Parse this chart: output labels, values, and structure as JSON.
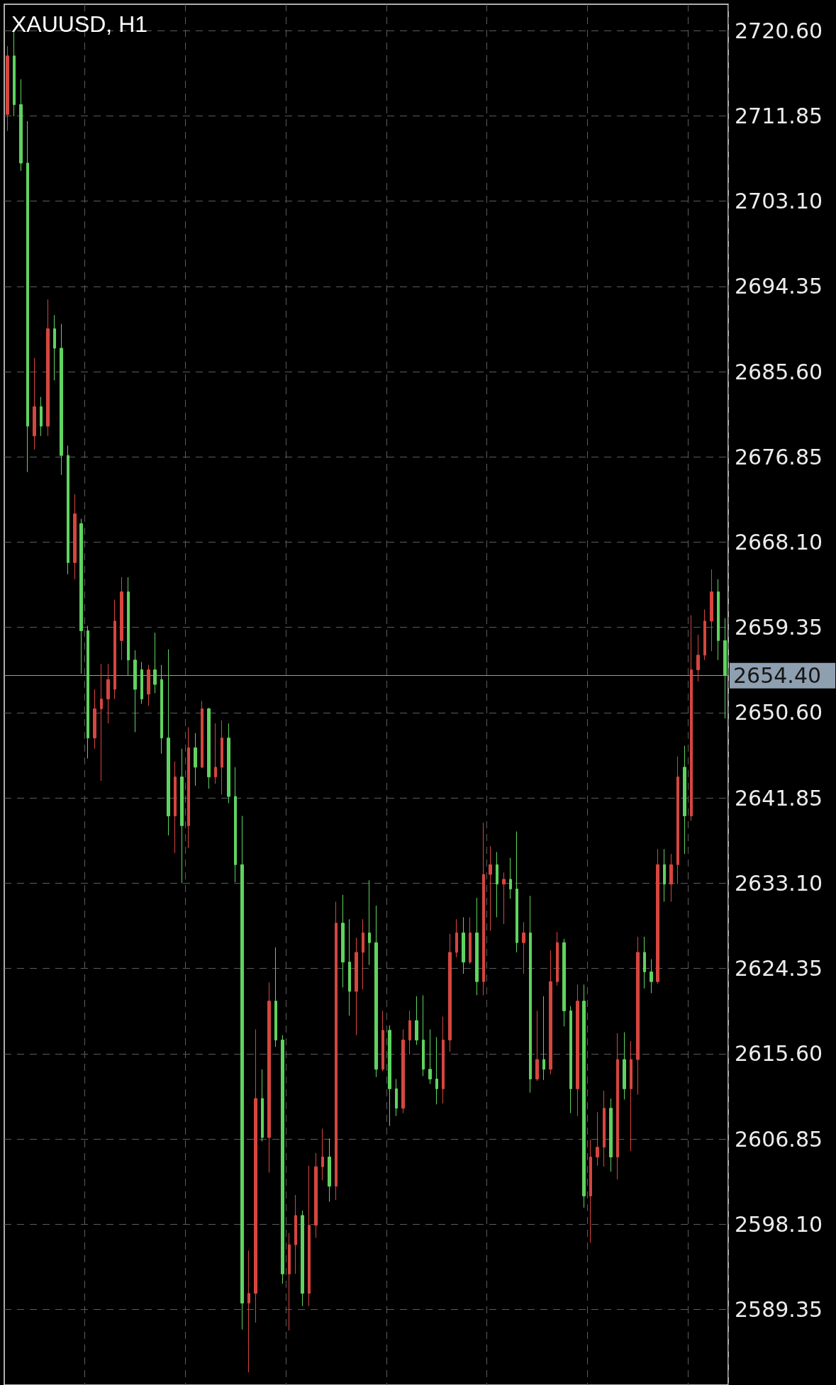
{
  "chart_data": {
    "type": "candlestick",
    "title": "XAUUSD, H1",
    "categories": [
      null,
      null,
      null,
      null,
      null,
      null,
      null,
      null,
      null,
      null,
      null,
      null,
      null,
      null,
      null,
      null,
      null,
      null,
      null,
      null,
      null,
      null,
      null,
      null,
      null,
      null,
      null,
      null,
      null,
      null,
      null,
      null,
      null,
      null,
      null,
      null,
      null,
      null,
      null,
      null,
      null,
      null,
      null,
      null,
      null,
      null,
      null,
      null,
      null,
      null,
      null,
      null,
      null,
      null,
      null,
      null,
      null,
      null,
      null,
      null,
      null,
      null,
      null,
      null,
      null,
      null,
      null,
      null,
      null,
      null,
      null,
      null,
      null,
      null,
      null,
      null,
      null,
      null,
      null,
      null,
      null,
      null,
      null,
      null,
      null,
      null,
      null,
      null,
      null,
      null,
      null,
      null,
      null,
      null,
      null,
      null,
      null,
      null,
      null,
      null,
      null,
      null,
      null,
      null,
      null,
      null,
      null,
      null
    ],
    "ohlc": [
      [
        2712,
        2719,
        2710.3,
        2718
      ],
      [
        2718,
        2720.6,
        2711.8,
        2713
      ],
      [
        2713,
        2715.6,
        2706.2,
        2707
      ],
      [
        2707,
        2711.3,
        2675.3,
        2680
      ],
      [
        2679,
        2687,
        2677.6,
        2682
      ],
      [
        2682,
        2683,
        2679,
        2680
      ],
      [
        2680,
        2693,
        2679,
        2690
      ],
      [
        2690,
        2691.4,
        2684.7,
        2688
      ],
      [
        2688,
        2690.5,
        2675,
        2677
      ],
      [
        2677,
        2678,
        2664.8,
        2666
      ],
      [
        2666,
        2673,
        2664.3,
        2671
      ],
      [
        2670,
        2670.5,
        2654.6,
        2659
      ],
      [
        2659,
        2659.5,
        2645.9,
        2648
      ],
      [
        2648,
        2653,
        2646.9,
        2651
      ],
      [
        2651,
        2655.6,
        2643.6,
        2652
      ],
      [
        2652,
        2655.6,
        2649.5,
        2654
      ],
      [
        2653,
        2662.2,
        2652,
        2660
      ],
      [
        2658,
        2664.5,
        2656,
        2663
      ],
      [
        2663,
        2664.5,
        2654.4,
        2656
      ],
      [
        2656,
        2657,
        2648.6,
        2653
      ],
      [
        2655,
        2655.8,
        2651.5,
        2652
      ],
      [
        2652.5,
        2655.5,
        2651.3,
        2655
      ],
      [
        2655,
        2658.8,
        2652.6,
        2653.5
      ],
      [
        2654,
        2655.5,
        2646.4,
        2648
      ],
      [
        2648,
        2657.1,
        2638,
        2640
      ],
      [
        2640,
        2645.6,
        2636.2,
        2644
      ],
      [
        2644,
        2646.9,
        2633.1,
        2639
      ],
      [
        2639,
        2649.1,
        2636.7,
        2647
      ],
      [
        2647,
        2648.5,
        2643.1,
        2645
      ],
      [
        2645,
        2651.8,
        2644.9,
        2651
      ],
      [
        2651,
        2651.1,
        2642.8,
        2644
      ],
      [
        2644,
        2649.5,
        2643.3,
        2645
      ],
      [
        2645,
        2649.8,
        2642.2,
        2648
      ],
      [
        2648,
        2649.5,
        2641.3,
        2642
      ],
      [
        2642,
        2645,
        2633.2,
        2635
      ],
      [
        2635,
        2640,
        2587.3,
        2590
      ],
      [
        2590,
        2595.4,
        2582.9,
        2591
      ],
      [
        2591,
        2618.1,
        2588,
        2611
      ],
      [
        2611,
        2614,
        2606.6,
        2607
      ],
      [
        2607,
        2622.9,
        2603.4,
        2621
      ],
      [
        2621,
        2626.5,
        2616.3,
        2617
      ],
      [
        2617,
        2617.5,
        2592,
        2593
      ],
      [
        2593,
        2597.2,
        2587.2,
        2596
      ],
      [
        2596,
        2601.1,
        2593,
        2599
      ],
      [
        2599,
        2599.5,
        2589.7,
        2591
      ],
      [
        2591,
        2604.1,
        2589.7,
        2598
      ],
      [
        2598,
        2605.4,
        2596.7,
        2604
      ],
      [
        2604,
        2607.9,
        2602.6,
        2605
      ],
      [
        2605,
        2606.9,
        2600.4,
        2602
      ],
      [
        2602,
        2631.2,
        2600.6,
        2629
      ],
      [
        2629,
        2631.9,
        2622.4,
        2625
      ],
      [
        2625,
        2629.4,
        2619.5,
        2622
      ],
      [
        2622,
        2627.5,
        2617.5,
        2626
      ],
      [
        2626,
        2629.4,
        2622.2,
        2628
      ],
      [
        2628,
        2633.4,
        2624.7,
        2627
      ],
      [
        2627,
        2630.8,
        2613.2,
        2614
      ],
      [
        2614,
        2620,
        2613.8,
        2618
      ],
      [
        2618,
        2618.5,
        2608.2,
        2612
      ],
      [
        2612,
        2613,
        2609.2,
        2610
      ],
      [
        2610,
        2618.1,
        2609.5,
        2617
      ],
      [
        2617,
        2620,
        2615.5,
        2619
      ],
      [
        2619,
        2621.5,
        2616.5,
        2617
      ],
      [
        2617,
        2621.6,
        2613.3,
        2614
      ],
      [
        2614,
        2618.1,
        2612.5,
        2613
      ],
      [
        2613,
        2617.3,
        2610.4,
        2612
      ],
      [
        2612,
        2619.4,
        2610.5,
        2617
      ],
      [
        2617,
        2627.9,
        2615.8,
        2626
      ],
      [
        2626,
        2629.4,
        2625.5,
        2628
      ],
      [
        2628,
        2629.6,
        2623.8,
        2625
      ],
      [
        2625,
        2629.6,
        2624.8,
        2628
      ],
      [
        2628,
        2631.6,
        2621.6,
        2623
      ],
      [
        2623,
        2639.3,
        2621.6,
        2634
      ],
      [
        2634,
        2636.9,
        2628.2,
        2635
      ],
      [
        2635,
        2636.3,
        2629.6,
        2633
      ],
      [
        2633,
        2634.2,
        2628.9,
        2633.5
      ],
      [
        2633.5,
        2635.7,
        2631.5,
        2632.5
      ],
      [
        2632.5,
        2638.4,
        2626,
        2627
      ],
      [
        2627,
        2629.1,
        2623.8,
        2628
      ],
      [
        2628,
        2631.8,
        2611.6,
        2613
      ],
      [
        2613,
        2620,
        2612.8,
        2615
      ],
      [
        2615,
        2621.5,
        2612.9,
        2614
      ],
      [
        2614,
        2626.2,
        2613.5,
        2623
      ],
      [
        2623,
        2628.1,
        2622.6,
        2627
      ],
      [
        2627,
        2627.4,
        2618.4,
        2620
      ],
      [
        2620,
        2620.5,
        2609.5,
        2612
      ],
      [
        2612,
        2622.7,
        2609.2,
        2621
      ],
      [
        2621,
        2622.7,
        2599.8,
        2601
      ],
      [
        2601,
        2606.8,
        2596.2,
        2605
      ],
      [
        2605,
        2609.6,
        2604.1,
        2606
      ],
      [
        2606,
        2611.8,
        2604,
        2610
      ],
      [
        2610,
        2611,
        2603.5,
        2605
      ],
      [
        2605,
        2617.7,
        2602.7,
        2615
      ],
      [
        2615,
        2617.8,
        2610.9,
        2612
      ],
      [
        2612,
        2616.9,
        2605.6,
        2615
      ],
      [
        2615,
        2627.6,
        2611.4,
        2626
      ],
      [
        2626,
        2627.6,
        2622.3,
        2624
      ],
      [
        2624,
        2625.3,
        2621.8,
        2623
      ],
      [
        2623,
        2636.6,
        2622.8,
        2635
      ],
      [
        2635,
        2636.6,
        2631.2,
        2633
      ],
      [
        2633,
        2636.1,
        2631.2,
        2635
      ],
      [
        2635,
        2646.1,
        2633,
        2644
      ],
      [
        2645,
        2647.2,
        2636.1,
        2640
      ],
      [
        2640,
        2660.6,
        2639.5,
        2655
      ],
      [
        2655,
        2658.6,
        2653.8,
        2656.5
      ],
      [
        2656.5,
        2661.2,
        2656,
        2660
      ],
      [
        2660,
        2665.3,
        2656.9,
        2663
      ],
      [
        2663,
        2664.3,
        2656,
        2658
      ],
      [
        2658,
        2660.3,
        2650,
        2654.4
      ]
    ],
    "colors": [
      "#d5463f",
      "#5fd35f",
      "#5fd35f",
      "#5fd35f",
      "#d5463f",
      "#5fd35f",
      "#d5463f",
      "#5fd35f",
      "#5fd35f",
      "#5fd35f",
      "#d5463f",
      "#5fd35f",
      "#5fd35f",
      "#d5463f",
      "#d5463f",
      "#d5463f",
      "#d5463f",
      "#d5463f",
      "#5fd35f",
      "#5fd35f",
      "#5fd35f",
      "#d5463f",
      "#5fd35f",
      "#5fd35f",
      "#5fd35f",
      "#d5463f",
      "#5fd35f",
      "#d5463f",
      "#5fd35f",
      "#d5463f",
      "#5fd35f",
      "#d5463f",
      "#d5463f",
      "#5fd35f",
      "#5fd35f",
      "#5fd35f",
      "#d5463f",
      "#d5463f",
      "#5fd35f",
      "#d5463f",
      "#5fd35f",
      "#5fd35f",
      "#d5463f",
      "#d5463f",
      "#5fd35f",
      "#d5463f",
      "#d5463f",
      "#d5463f",
      "#5fd35f",
      "#d5463f",
      "#5fd35f",
      "#5fd35f",
      "#d5463f",
      "#d5463f",
      "#5fd35f",
      "#5fd35f",
      "#d5463f",
      "#5fd35f",
      "#5fd35f",
      "#d5463f",
      "#d5463f",
      "#5fd35f",
      "#5fd35f",
      "#5fd35f",
      "#5fd35f",
      "#d5463f",
      "#d5463f",
      "#d5463f",
      "#5fd35f",
      "#d5463f",
      "#5fd35f",
      "#d5463f",
      "#d5463f",
      "#5fd35f",
      "#d5463f",
      "#5fd35f",
      "#5fd35f",
      "#d5463f",
      "#5fd35f",
      "#d5463f",
      "#5fd35f",
      "#d5463f",
      "#d5463f",
      "#5fd35f",
      "#5fd35f",
      "#d5463f",
      "#5fd35f",
      "#d5463f",
      "#d5463f",
      "#d5463f",
      "#5fd35f",
      "#d5463f",
      "#5fd35f",
      "#d5463f",
      "#d5463f",
      "#5fd35f",
      "#5fd35f",
      "#d5463f",
      "#5fd35f",
      "#d5463f",
      "#d5463f",
      "#5fd35f",
      "#d5463f",
      "#d5463f",
      "#d5463f",
      "#d5463f",
      "#5fd35f",
      "#5fd35f"
    ],
    "ylim": [
      2581.6,
      2723.3
    ],
    "yticks": [
      {
        "value": 2589.35,
        "label": "2589.35"
      },
      {
        "value": 2598.1,
        "label": "2598.10"
      },
      {
        "value": 2606.85,
        "label": "2606.85"
      },
      {
        "value": 2615.6,
        "label": "2615.60"
      },
      {
        "value": 2624.35,
        "label": "2624.35"
      },
      {
        "value": 2633.1,
        "label": "2633.10"
      },
      {
        "value": 2641.85,
        "label": "2641.85"
      },
      {
        "value": 2650.6,
        "label": "2650.60"
      },
      {
        "value": 2659.35,
        "label": "2659.35"
      },
      {
        "value": 2668.1,
        "label": "2668.10"
      },
      {
        "value": 2676.85,
        "label": "2676.85"
      },
      {
        "value": 2685.6,
        "label": "2685.60"
      },
      {
        "value": 2694.35,
        "label": "2694.35"
      },
      {
        "value": 2703.1,
        "label": "2703.10"
      },
      {
        "value": 2711.85,
        "label": "2711.85"
      },
      {
        "value": 2720.6,
        "label": "2720.60"
      }
    ],
    "ref_lines": [
      {
        "axis": "y",
        "value": 2654.4,
        "label": "2654.40",
        "color": "#8e9fb0"
      }
    ],
    "tick_labels": "y",
    "grid": true
  }
}
